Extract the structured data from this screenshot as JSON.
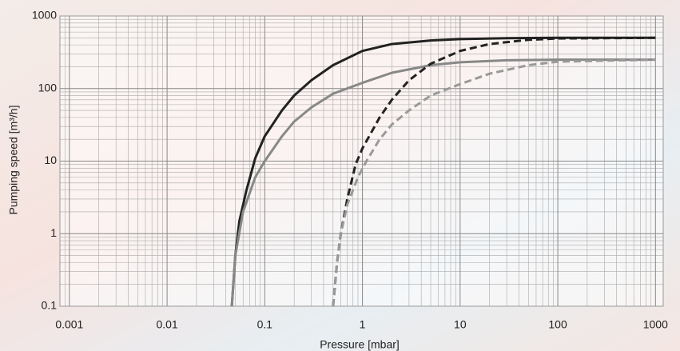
{
  "chart_data": {
    "type": "line",
    "xlabel": "Pressure [mbar]",
    "ylabel": "Pumping speed [m³/h]",
    "log_x": true,
    "log_y": true,
    "grid": true,
    "xlim": [
      0.0008,
      1200
    ],
    "ylim": [
      0.1,
      1000
    ],
    "xticks": [
      0.001,
      0.01,
      0.1,
      1,
      10,
      100,
      1000
    ],
    "yticks": [
      0.1,
      1,
      10,
      100,
      1000
    ],
    "series": [
      {
        "color": "#222222",
        "dash": false,
        "x": [
          0.046,
          0.05,
          0.055,
          0.065,
          0.08,
          0.1,
          0.15,
          0.2,
          0.3,
          0.5,
          1,
          2,
          5,
          10,
          30,
          100,
          300,
          1000
        ],
        "values": [
          0.1,
          0.5,
          1.5,
          4,
          11,
          22,
          50,
          80,
          130,
          210,
          330,
          410,
          460,
          480,
          495,
          500,
          500,
          500
        ]
      },
      {
        "color": "#888888",
        "dash": false,
        "x": [
          0.046,
          0.05,
          0.06,
          0.08,
          0.1,
          0.15,
          0.2,
          0.3,
          0.5,
          1,
          2,
          5,
          10,
          30,
          100,
          1000
        ],
        "values": [
          0.1,
          0.5,
          2,
          6,
          10,
          22,
          35,
          55,
          85,
          120,
          165,
          210,
          230,
          245,
          250,
          250
        ]
      },
      {
        "color": "#222222",
        "dash": true,
        "x": [
          0.5,
          0.55,
          0.6,
          0.7,
          0.85,
          1,
          1.5,
          2,
          3,
          5,
          10,
          20,
          50,
          100,
          1000
        ],
        "values": [
          0.1,
          0.4,
          1,
          3,
          9,
          15,
          40,
          70,
          130,
          220,
          330,
          410,
          470,
          490,
          500
        ]
      },
      {
        "color": "#999999",
        "dash": true,
        "x": [
          0.5,
          0.55,
          0.6,
          0.7,
          0.9,
          1.1,
          1.5,
          2,
          3,
          5,
          10,
          20,
          50,
          100,
          1000
        ],
        "values": [
          0.1,
          0.4,
          1,
          2.5,
          6,
          10,
          20,
          32,
          50,
          80,
          115,
          160,
          210,
          235,
          250
        ]
      }
    ]
  }
}
